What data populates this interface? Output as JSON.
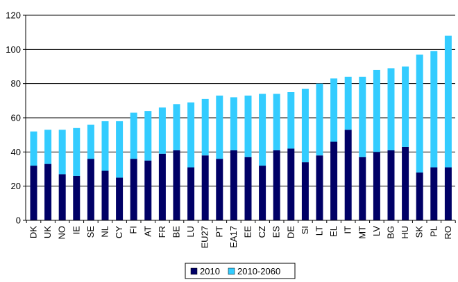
{
  "chart_data": {
    "type": "bar",
    "stacked": true,
    "categories": [
      "DK",
      "UK",
      "NO",
      "IE",
      "SE",
      "NL",
      "CY",
      "FI",
      "AT",
      "FR",
      "BE",
      "LU",
      "EU27",
      "PT",
      "EA17",
      "EE",
      "CZ",
      "ES",
      "DE",
      "SI",
      "LT",
      "EL",
      "IT",
      "MT",
      "LV",
      "BG",
      "HU",
      "SK",
      "PL",
      "RO"
    ],
    "series": [
      {
        "name": "2010",
        "color": "#000066",
        "values": [
          32,
          33,
          27,
          26,
          36,
          29,
          25,
          36,
          35,
          39,
          41,
          31,
          38,
          36,
          41,
          37,
          32,
          41,
          42,
          34,
          38,
          46,
          53,
          37,
          40,
          41,
          43,
          28,
          31,
          31
        ]
      },
      {
        "name": "2010-2060",
        "color": "#33CCFF",
        "values": [
          20,
          20,
          26,
          28,
          20,
          29,
          33,
          27,
          29,
          27,
          27,
          38,
          33,
          37,
          31,
          36,
          42,
          33,
          33,
          43,
          42,
          37,
          31,
          47,
          48,
          48,
          47,
          69,
          68,
          77
        ]
      }
    ],
    "ylim": [
      0,
      120
    ],
    "yticks": [
      "0",
      "20",
      "40",
      "60",
      "80",
      "100",
      "120"
    ],
    "grid": true,
    "legend": "bottom"
  }
}
